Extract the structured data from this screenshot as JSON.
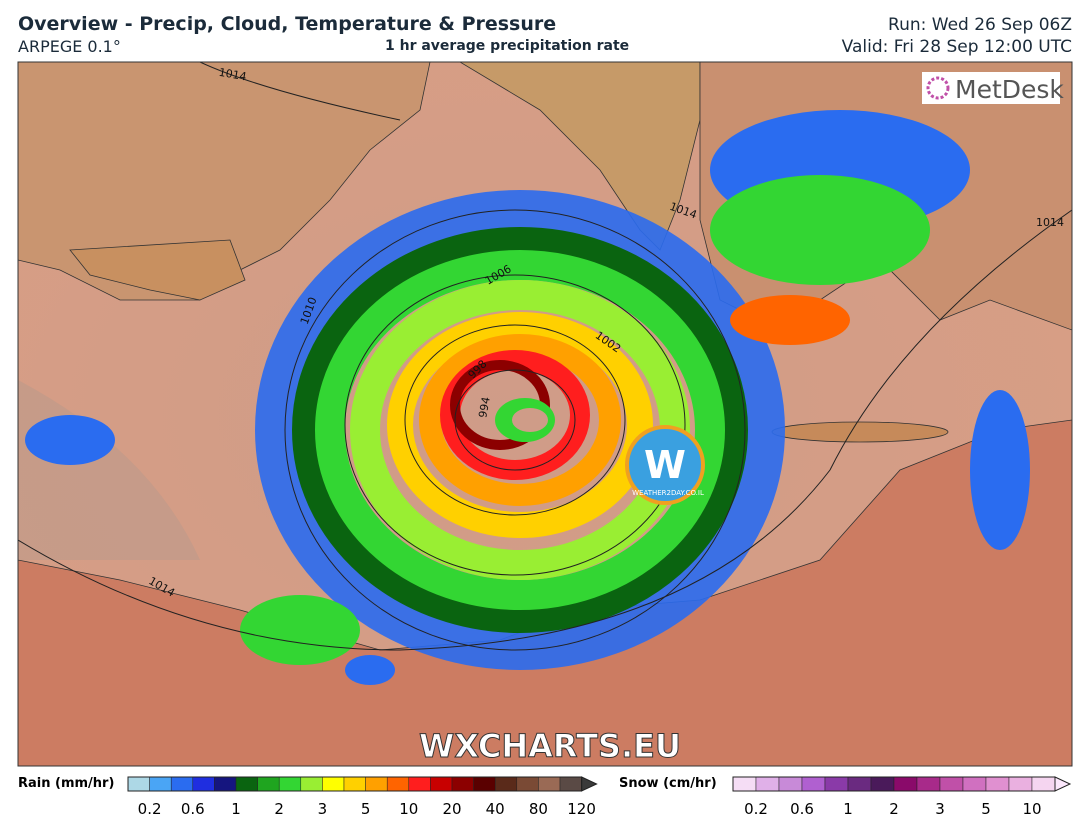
{
  "header": {
    "title": "Overview - Precip, Cloud, Temperature & Pressure",
    "model": "ARPEGE 0.1°",
    "subtitle": "1 hr average precipitation rate",
    "run": "Run: Wed 26 Sep 06Z",
    "valid": "Valid: Fri 28 Sep 12:00 UTC"
  },
  "map": {
    "logo": "MetDesk",
    "watermark": "WXCHARTS.EU",
    "badge": "WEATHER2DAY.CO.IL",
    "isobar_labels": [
      "1014",
      "1010",
      "1006",
      "1002",
      "998",
      "994",
      "1014",
      "1014",
      "1014"
    ]
  },
  "legend": {
    "rain": {
      "label": "Rain (mm/hr)",
      "ticks": [
        "0.2",
        "0.6",
        "1",
        "2",
        "3",
        "5",
        "10",
        "20",
        "40",
        "80",
        "120"
      ],
      "colors": [
        "#add8e6",
        "#4aa5f5",
        "#2a6cf0",
        "#1f2ee0",
        "#15157f",
        "#0a6410",
        "#1fa51f",
        "#33d633",
        "#99ee33",
        "#ffff00",
        "#ffd000",
        "#ffa000",
        "#ff6400",
        "#ff1e1e",
        "#c80000",
        "#8c0000",
        "#5a0000",
        "#5a2a1a",
        "#7a4a35",
        "#9a6a55",
        "#5a4a45"
      ],
      "arrow_color": "#3a3a3a"
    },
    "snow": {
      "label": "Snow (cm/hr)",
      "ticks": [
        "0.2",
        "0.6",
        "1",
        "2",
        "3",
        "5",
        "10"
      ],
      "colors": [
        "#f5ddf5",
        "#e0b0e8",
        "#c88ad8",
        "#b060d0",
        "#8a3aa8",
        "#6a2a80",
        "#4a1a5a",
        "#8a0a6a",
        "#a82a8a",
        "#c050a8",
        "#d070c0",
        "#e090d0",
        "#eab0e0",
        "#f5d5f0"
      ],
      "arrow_color": "#fce8fc"
    }
  }
}
